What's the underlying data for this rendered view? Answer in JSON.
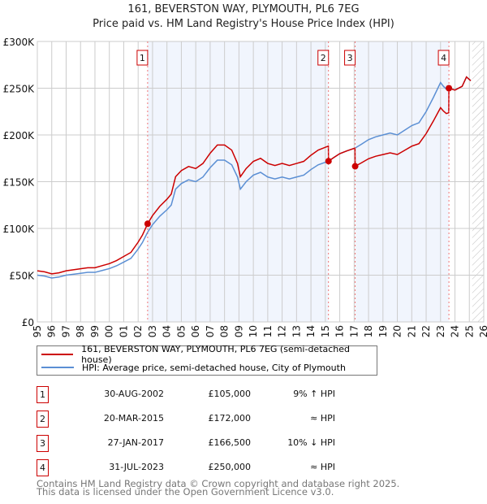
{
  "chart_data": {
    "type": "line",
    "title": "161, BEVERSTON WAY, PLYMOUTH, PL6 7EG",
    "subtitle": "Price paid vs. HM Land Registry's House Price Index (HPI)",
    "xlim": [
      1995,
      2026
    ],
    "ylim": [
      0,
      300000
    ],
    "x_ticks": [
      "1995",
      "1996",
      "1997",
      "1998",
      "1999",
      "2000",
      "2001",
      "2002",
      "2003",
      "2004",
      "2005",
      "2006",
      "2007",
      "2008",
      "2009",
      "2010",
      "2011",
      "2012",
      "2013",
      "2014",
      "2015",
      "2016",
      "2017",
      "2018",
      "2019",
      "2020",
      "2021",
      "2022",
      "2023",
      "2024",
      "2025",
      "2026"
    ],
    "y_ticks": [
      {
        "v": 0,
        "label": "£0"
      },
      {
        "v": 50000,
        "label": "£50K"
      },
      {
        "v": 100000,
        "label": "£100K"
      },
      {
        "v": 150000,
        "label": "£150K"
      },
      {
        "v": 200000,
        "label": "£200K"
      },
      {
        "v": 250000,
        "label": "£250K"
      },
      {
        "v": 300000,
        "label": "£300K"
      }
    ],
    "grid": true,
    "forecast_hatch_from": 2025.2,
    "hpi_series": {
      "name": "HPI: Average price, semi-detached house, City of Plymouth",
      "color": "#5b8fd4",
      "x": [
        1995,
        1995.5,
        1996,
        1996.5,
        1997,
        1997.5,
        1998,
        1998.5,
        1999,
        1999.5,
        2000,
        2000.5,
        2001,
        2001.5,
        2002,
        2002.3,
        2002.66,
        2003,
        2003.5,
        2004,
        2004.3,
        2004.6,
        2005,
        2005.5,
        2006,
        2006.5,
        2007,
        2007.5,
        2008,
        2008.5,
        2008.9,
        2009.1,
        2009.5,
        2010,
        2010.5,
        2011,
        2011.5,
        2012,
        2012.5,
        2013,
        2013.5,
        2014,
        2014.5,
        2015.22,
        2015.6,
        2016,
        2016.5,
        2017.07,
        2017.5,
        2018,
        2018.5,
        2019,
        2019.5,
        2020,
        2020.5,
        2021,
        2021.5,
        2022,
        2022.5,
        2023,
        2023.2,
        2023.4,
        2023.58,
        2024,
        2024.5,
        2024.8,
        2025.1
      ],
      "y": [
        50000,
        49000,
        47000,
        48000,
        50000,
        51000,
        52000,
        53000,
        53000,
        55000,
        57000,
        60000,
        64000,
        68000,
        78000,
        85000,
        96000,
        104000,
        113000,
        120000,
        125000,
        142000,
        148000,
        152000,
        150000,
        155000,
        165000,
        173000,
        173000,
        168000,
        155000,
        142000,
        150000,
        157000,
        160000,
        155000,
        153000,
        155000,
        153000,
        155000,
        157000,
        163000,
        168000,
        172000,
        176000,
        180000,
        183000,
        186000,
        190000,
        195000,
        198000,
        200000,
        202000,
        200000,
        205000,
        210000,
        213000,
        225000,
        240000,
        256000,
        252000,
        249000,
        250000,
        248000,
        252000,
        262000,
        258000
      ]
    },
    "price_series": {
      "name": "161, BEVERSTON WAY, PLYMOUTH, PL6 7EG (semi-detached house)",
      "color": "#cc0000"
    },
    "sales": [
      {
        "n": "1",
        "x": 2002.66,
        "date": "30-AUG-2002",
        "price": 105000,
        "price_label": "£105,000",
        "hpi": "9% ↑ HPI"
      },
      {
        "n": "2",
        "x": 2015.22,
        "date": "20-MAR-2015",
        "price": 172000,
        "price_label": "£172,000",
        "hpi": "≈ HPI"
      },
      {
        "n": "3",
        "x": 2017.07,
        "date": "27-JAN-2017",
        "price": 166500,
        "price_label": "£166,500",
        "hpi": "10% ↓ HPI"
      },
      {
        "n": "4",
        "x": 2023.58,
        "date": "31-JUL-2023",
        "price": 250000,
        "price_label": "£250,000",
        "hpi": "≈ HPI"
      }
    ],
    "shaded_periods": [
      [
        2002.66,
        2015.22
      ],
      [
        2017.07,
        2023.58
      ]
    ]
  },
  "legend": {
    "price": "161, BEVERSTON WAY, PLYMOUTH, PL6 7EG (semi-detached house)",
    "hpi": "HPI: Average price, semi-detached house, City of Plymouth"
  },
  "footer": {
    "line1": "Contains HM Land Registry data © Crown copyright and database right 2025.",
    "line2": "This data is licensed under the Open Government Licence v3.0."
  }
}
